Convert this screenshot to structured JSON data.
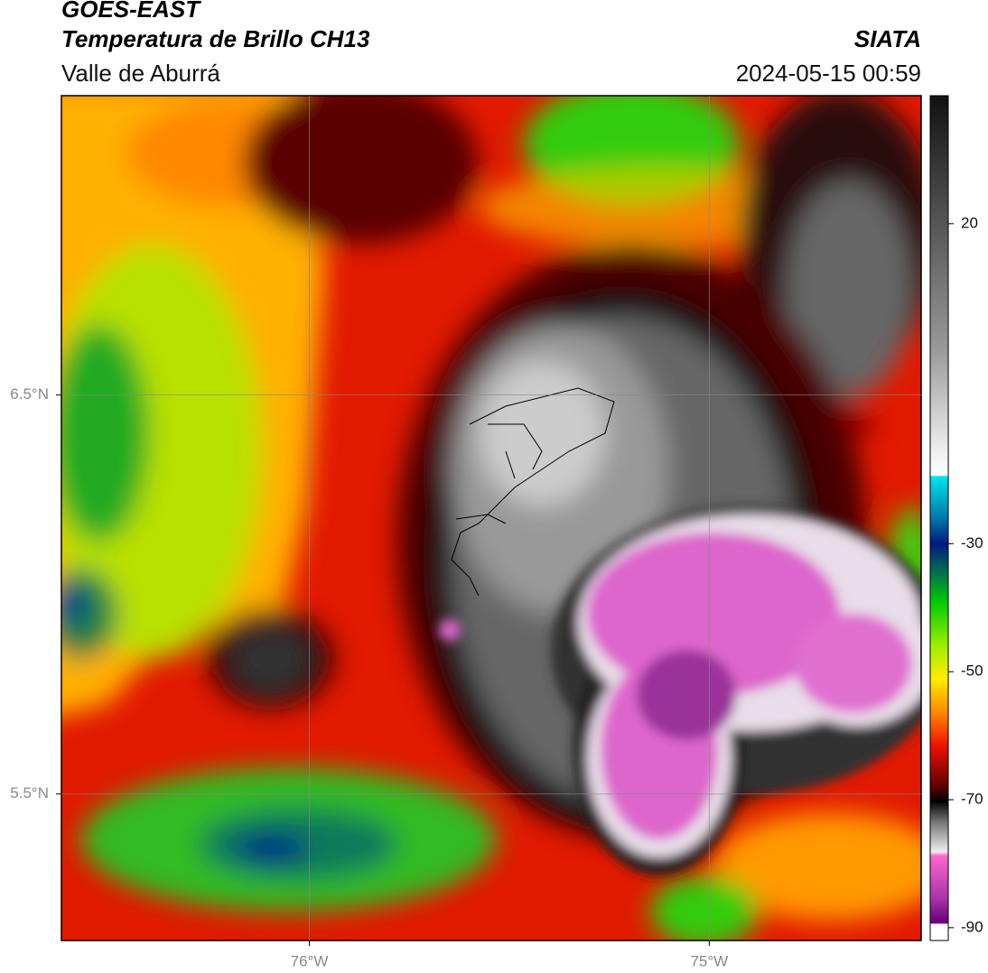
{
  "header": {
    "title": "GOES-EAST",
    "subtitle": "Temperatura de Brillo CH13",
    "region": "Valle de Aburrá",
    "source": "SIATA",
    "timestamp": "2024-05-15 00:59"
  },
  "map": {
    "xlim": [
      -76.62,
      -74.47
    ],
    "ylim": [
      5.133,
      7.25
    ],
    "xticks": [
      {
        "value": -76,
        "label": "76°W"
      },
      {
        "value": -75,
        "label": "75°W"
      }
    ],
    "yticks": [
      {
        "value": 6.5,
        "label": "6.5°N"
      },
      {
        "value": 5.5,
        "label": "5.5°N"
      }
    ],
    "grid": true
  },
  "colorbar": {
    "lim": [
      -92,
      40
    ],
    "ticks": [
      20,
      -30,
      -50,
      -70,
      -90
    ]
  }
}
